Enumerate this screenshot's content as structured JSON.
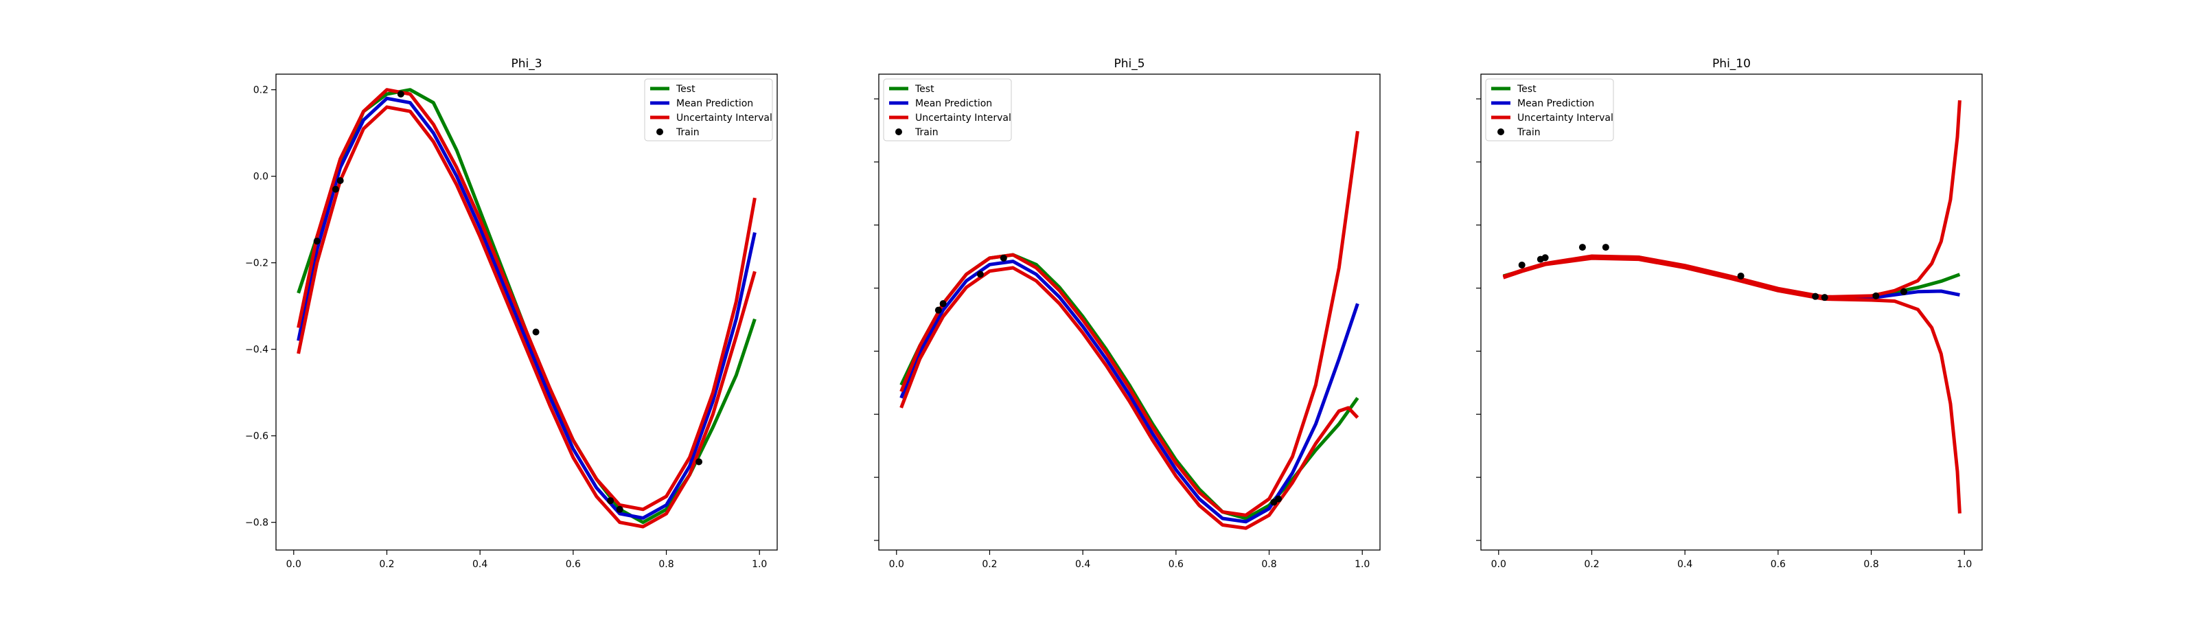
{
  "chart_data": [
    {
      "type": "line",
      "title": "Phi_3",
      "xlabel": "",
      "ylabel": "",
      "xlim": [
        -0.038,
        1.038
      ],
      "ylim": [
        -0.864,
        0.236
      ],
      "xticks": [
        0.0,
        0.2,
        0.4,
        0.6,
        0.8,
        1.0
      ],
      "xtick_labels": [
        "0.0",
        "0.2",
        "0.4",
        "0.6",
        "0.8",
        "1.0"
      ],
      "yticks": [
        0.2,
        0.0,
        -0.2,
        -0.4,
        -0.6,
        -0.8
      ],
      "ytick_labels": [
        "0.2",
        "0.0",
        "−0.2",
        "−0.4",
        "−0.6",
        "−0.8"
      ],
      "legend_position": "top-right",
      "legend": [
        "Test",
        "Mean Prediction",
        "Uncertainty Interval",
        "Train"
      ],
      "series": [
        {
          "name": "Test",
          "color": "#008000",
          "x": [
            0.01,
            0.05,
            0.1,
            0.15,
            0.2,
            0.25,
            0.3,
            0.35,
            0.4,
            0.45,
            0.5,
            0.55,
            0.6,
            0.65,
            0.7,
            0.75,
            0.8,
            0.85,
            0.9,
            0.95,
            0.99
          ],
          "y": [
            -0.27,
            -0.14,
            0.02,
            0.15,
            0.19,
            0.2,
            0.17,
            0.06,
            -0.08,
            -0.22,
            -0.36,
            -0.5,
            -0.61,
            -0.7,
            -0.77,
            -0.8,
            -0.77,
            -0.69,
            -0.58,
            -0.46,
            -0.33
          ]
        },
        {
          "name": "Mean Prediction",
          "color": "#0000cc",
          "x": [
            0.01,
            0.05,
            0.1,
            0.15,
            0.2,
            0.25,
            0.3,
            0.35,
            0.4,
            0.45,
            0.5,
            0.55,
            0.6,
            0.65,
            0.7,
            0.75,
            0.8,
            0.85,
            0.9,
            0.95,
            0.99
          ],
          "y": [
            -0.38,
            -0.17,
            0.02,
            0.13,
            0.18,
            0.17,
            0.1,
            0.0,
            -0.12,
            -0.25,
            -0.38,
            -0.51,
            -0.63,
            -0.72,
            -0.78,
            -0.79,
            -0.76,
            -0.67,
            -0.52,
            -0.33,
            -0.13
          ]
        },
        {
          "name": "Uncertainty Interval",
          "color": "#dd0000",
          "x": [
            0.01,
            0.05,
            0.1,
            0.15,
            0.2,
            0.25,
            0.3,
            0.35,
            0.4,
            0.45,
            0.5,
            0.55,
            0.6,
            0.65,
            0.7,
            0.75,
            0.8,
            0.85,
            0.9,
            0.95,
            0.99
          ],
          "y": [
            -0.35,
            -0.14,
            0.04,
            0.15,
            0.2,
            0.19,
            0.12,
            0.02,
            -0.1,
            -0.23,
            -0.36,
            -0.49,
            -0.61,
            -0.7,
            -0.76,
            -0.77,
            -0.74,
            -0.65,
            -0.5,
            -0.29,
            -0.05
          ]
        },
        {
          "name": "Uncertainty Interval",
          "color": "#dd0000",
          "x": [
            0.01,
            0.05,
            0.1,
            0.15,
            0.2,
            0.25,
            0.3,
            0.35,
            0.4,
            0.45,
            0.5,
            0.55,
            0.6,
            0.65,
            0.7,
            0.75,
            0.8,
            0.85,
            0.9,
            0.95,
            0.99
          ],
          "y": [
            -0.41,
            -0.2,
            -0.01,
            0.11,
            0.16,
            0.15,
            0.08,
            -0.02,
            -0.14,
            -0.27,
            -0.4,
            -0.53,
            -0.65,
            -0.74,
            -0.8,
            -0.81,
            -0.78,
            -0.69,
            -0.55,
            -0.37,
            -0.22
          ]
        }
      ],
      "train": {
        "name": "Train",
        "color": "#000000",
        "x": [
          0.05,
          0.09,
          0.1,
          0.23,
          0.52,
          0.68,
          0.7,
          0.87
        ],
        "y": [
          -0.15,
          -0.03,
          -0.01,
          0.19,
          -0.36,
          -0.75,
          -0.77,
          -0.66
        ]
      }
    },
    {
      "type": "line",
      "title": "Phi_5",
      "xlabel": "",
      "ylabel": "",
      "xlim": [
        -0.038,
        1.038
      ],
      "ylim": [
        -0.887,
        0.575
      ],
      "xticks": [
        0.0,
        0.2,
        0.4,
        0.6,
        0.8,
        1.0
      ],
      "xtick_labels": [
        "0.0",
        "0.2",
        "0.4",
        "0.6",
        "0.8",
        "1.0"
      ],
      "yticks": [],
      "ytick_labels": [],
      "legend_position": "top-left",
      "legend": [
        "Test",
        "Mean Prediction",
        "Uncertainty Interval",
        "Train"
      ],
      "series": [
        {
          "name": "Test",
          "color": "#008000",
          "x": [
            0.01,
            0.05,
            0.1,
            0.15,
            0.2,
            0.25,
            0.3,
            0.35,
            0.4,
            0.45,
            0.5,
            0.55,
            0.6,
            0.65,
            0.7,
            0.75,
            0.8,
            0.85,
            0.9,
            0.95,
            0.99
          ],
          "y": [
            -0.38,
            -0.26,
            -0.13,
            -0.04,
            0.01,
            0.02,
            -0.01,
            -0.08,
            -0.17,
            -0.27,
            -0.38,
            -0.5,
            -0.61,
            -0.7,
            -0.77,
            -0.79,
            -0.75,
            -0.67,
            -0.58,
            -0.5,
            -0.42
          ]
        },
        {
          "name": "Mean Prediction",
          "color": "#0000cc",
          "x": [
            0.01,
            0.05,
            0.1,
            0.15,
            0.2,
            0.25,
            0.3,
            0.35,
            0.4,
            0.45,
            0.5,
            0.55,
            0.6,
            0.65,
            0.7,
            0.75,
            0.8,
            0.85,
            0.9,
            0.95,
            0.99
          ],
          "y": [
            -0.42,
            -0.28,
            -0.15,
            -0.06,
            -0.01,
            0.0,
            -0.04,
            -0.11,
            -0.2,
            -0.3,
            -0.41,
            -0.53,
            -0.64,
            -0.73,
            -0.79,
            -0.8,
            -0.76,
            -0.65,
            -0.5,
            -0.3,
            -0.13
          ]
        },
        {
          "name": "Uncertainty Interval",
          "color": "#dd0000",
          "x": [
            0.01,
            0.05,
            0.1,
            0.15,
            0.2,
            0.25,
            0.3,
            0.35,
            0.4,
            0.45,
            0.5,
            0.55,
            0.6,
            0.65,
            0.7,
            0.75,
            0.8,
            0.85,
            0.9,
            0.95,
            0.99
          ],
          "y": [
            -0.4,
            -0.26,
            -0.13,
            -0.04,
            0.01,
            0.02,
            -0.02,
            -0.09,
            -0.18,
            -0.28,
            -0.39,
            -0.51,
            -0.62,
            -0.71,
            -0.77,
            -0.78,
            -0.73,
            -0.6,
            -0.38,
            -0.02,
            0.4
          ]
        },
        {
          "name": "Uncertainty Interval",
          "color": "#dd0000",
          "x": [
            0.01,
            0.05,
            0.1,
            0.15,
            0.2,
            0.25,
            0.3,
            0.35,
            0.4,
            0.45,
            0.5,
            0.55,
            0.6,
            0.65,
            0.7,
            0.75,
            0.8,
            0.85,
            0.9,
            0.95,
            0.97,
            0.99
          ],
          "y": [
            -0.45,
            -0.3,
            -0.17,
            -0.08,
            -0.03,
            -0.02,
            -0.06,
            -0.13,
            -0.22,
            -0.32,
            -0.43,
            -0.55,
            -0.66,
            -0.75,
            -0.81,
            -0.82,
            -0.78,
            -0.68,
            -0.56,
            -0.46,
            -0.45,
            -0.48
          ]
        }
      ],
      "train": {
        "name": "Train",
        "color": "#000000",
        "x": [
          0.09,
          0.1,
          0.18,
          0.23,
          0.81,
          0.82
        ],
        "y": [
          -0.15,
          -0.13,
          -0.04,
          0.01,
          -0.74,
          -0.73
        ]
      }
    },
    {
      "type": "line",
      "title": "Phi_10",
      "xlabel": "",
      "ylabel": "",
      "xlim": [
        -0.038,
        1.038
      ],
      "ylim": [
        -5.6,
        3.5
      ],
      "xticks": [
        0.0,
        0.2,
        0.4,
        0.6,
        0.8,
        1.0
      ],
      "xtick_labels": [
        "0.0",
        "0.2",
        "0.4",
        "0.6",
        "0.8",
        "1.0"
      ],
      "yticks": [],
      "ytick_labels": [],
      "legend_position": "top-left",
      "legend": [
        "Test",
        "Mean Prediction",
        "Uncertainty Interval",
        "Train"
      ],
      "series": [
        {
          "name": "Test",
          "color": "#008000",
          "x": [
            0.01,
            0.05,
            0.1,
            0.2,
            0.3,
            0.4,
            0.5,
            0.6,
            0.7,
            0.8,
            0.9,
            0.95,
            0.99
          ],
          "y": [
            -0.36,
            -0.26,
            -0.13,
            0.01,
            0.0,
            -0.17,
            -0.38,
            -0.61,
            -0.77,
            -0.76,
            -0.58,
            -0.46,
            -0.33
          ]
        },
        {
          "name": "Mean Prediction",
          "color": "#0000cc",
          "x": [
            0.01,
            0.05,
            0.1,
            0.2,
            0.3,
            0.4,
            0.5,
            0.6,
            0.7,
            0.8,
            0.9,
            0.95,
            0.99
          ],
          "y": [
            -0.38,
            -0.26,
            -0.13,
            0.0,
            -0.02,
            -0.18,
            -0.39,
            -0.62,
            -0.78,
            -0.78,
            -0.66,
            -0.65,
            -0.72
          ]
        },
        {
          "name": "Uncertainty Interval",
          "color": "#dd0000",
          "x": [
            0.01,
            0.05,
            0.1,
            0.2,
            0.3,
            0.4,
            0.5,
            0.6,
            0.7,
            0.8,
            0.85,
            0.9,
            0.93,
            0.95,
            0.97,
            0.985,
            0.99
          ],
          "y": [
            -0.37,
            -0.25,
            -0.12,
            0.02,
            0.0,
            -0.16,
            -0.37,
            -0.6,
            -0.76,
            -0.74,
            -0.64,
            -0.45,
            -0.12,
            0.3,
            1.1,
            2.3,
            3.0
          ]
        },
        {
          "name": "Uncertainty Interval",
          "color": "#dd0000",
          "x": [
            0.01,
            0.05,
            0.1,
            0.2,
            0.3,
            0.4,
            0.5,
            0.6,
            0.7,
            0.8,
            0.85,
            0.9,
            0.93,
            0.95,
            0.97,
            0.985,
            0.99
          ],
          "y": [
            -0.39,
            -0.27,
            -0.14,
            -0.02,
            -0.04,
            -0.2,
            -0.41,
            -0.64,
            -0.8,
            -0.82,
            -0.84,
            -1.0,
            -1.35,
            -1.85,
            -2.8,
            -4.1,
            -4.9
          ]
        }
      ],
      "train": {
        "name": "Train",
        "color": "#000000",
        "x": [
          0.05,
          0.09,
          0.1,
          0.18,
          0.23,
          0.52,
          0.68,
          0.7,
          0.81,
          0.87
        ],
        "y": [
          -0.15,
          -0.04,
          -0.01,
          0.19,
          0.19,
          -0.36,
          -0.75,
          -0.77,
          -0.74,
          -0.66
        ]
      }
    }
  ]
}
